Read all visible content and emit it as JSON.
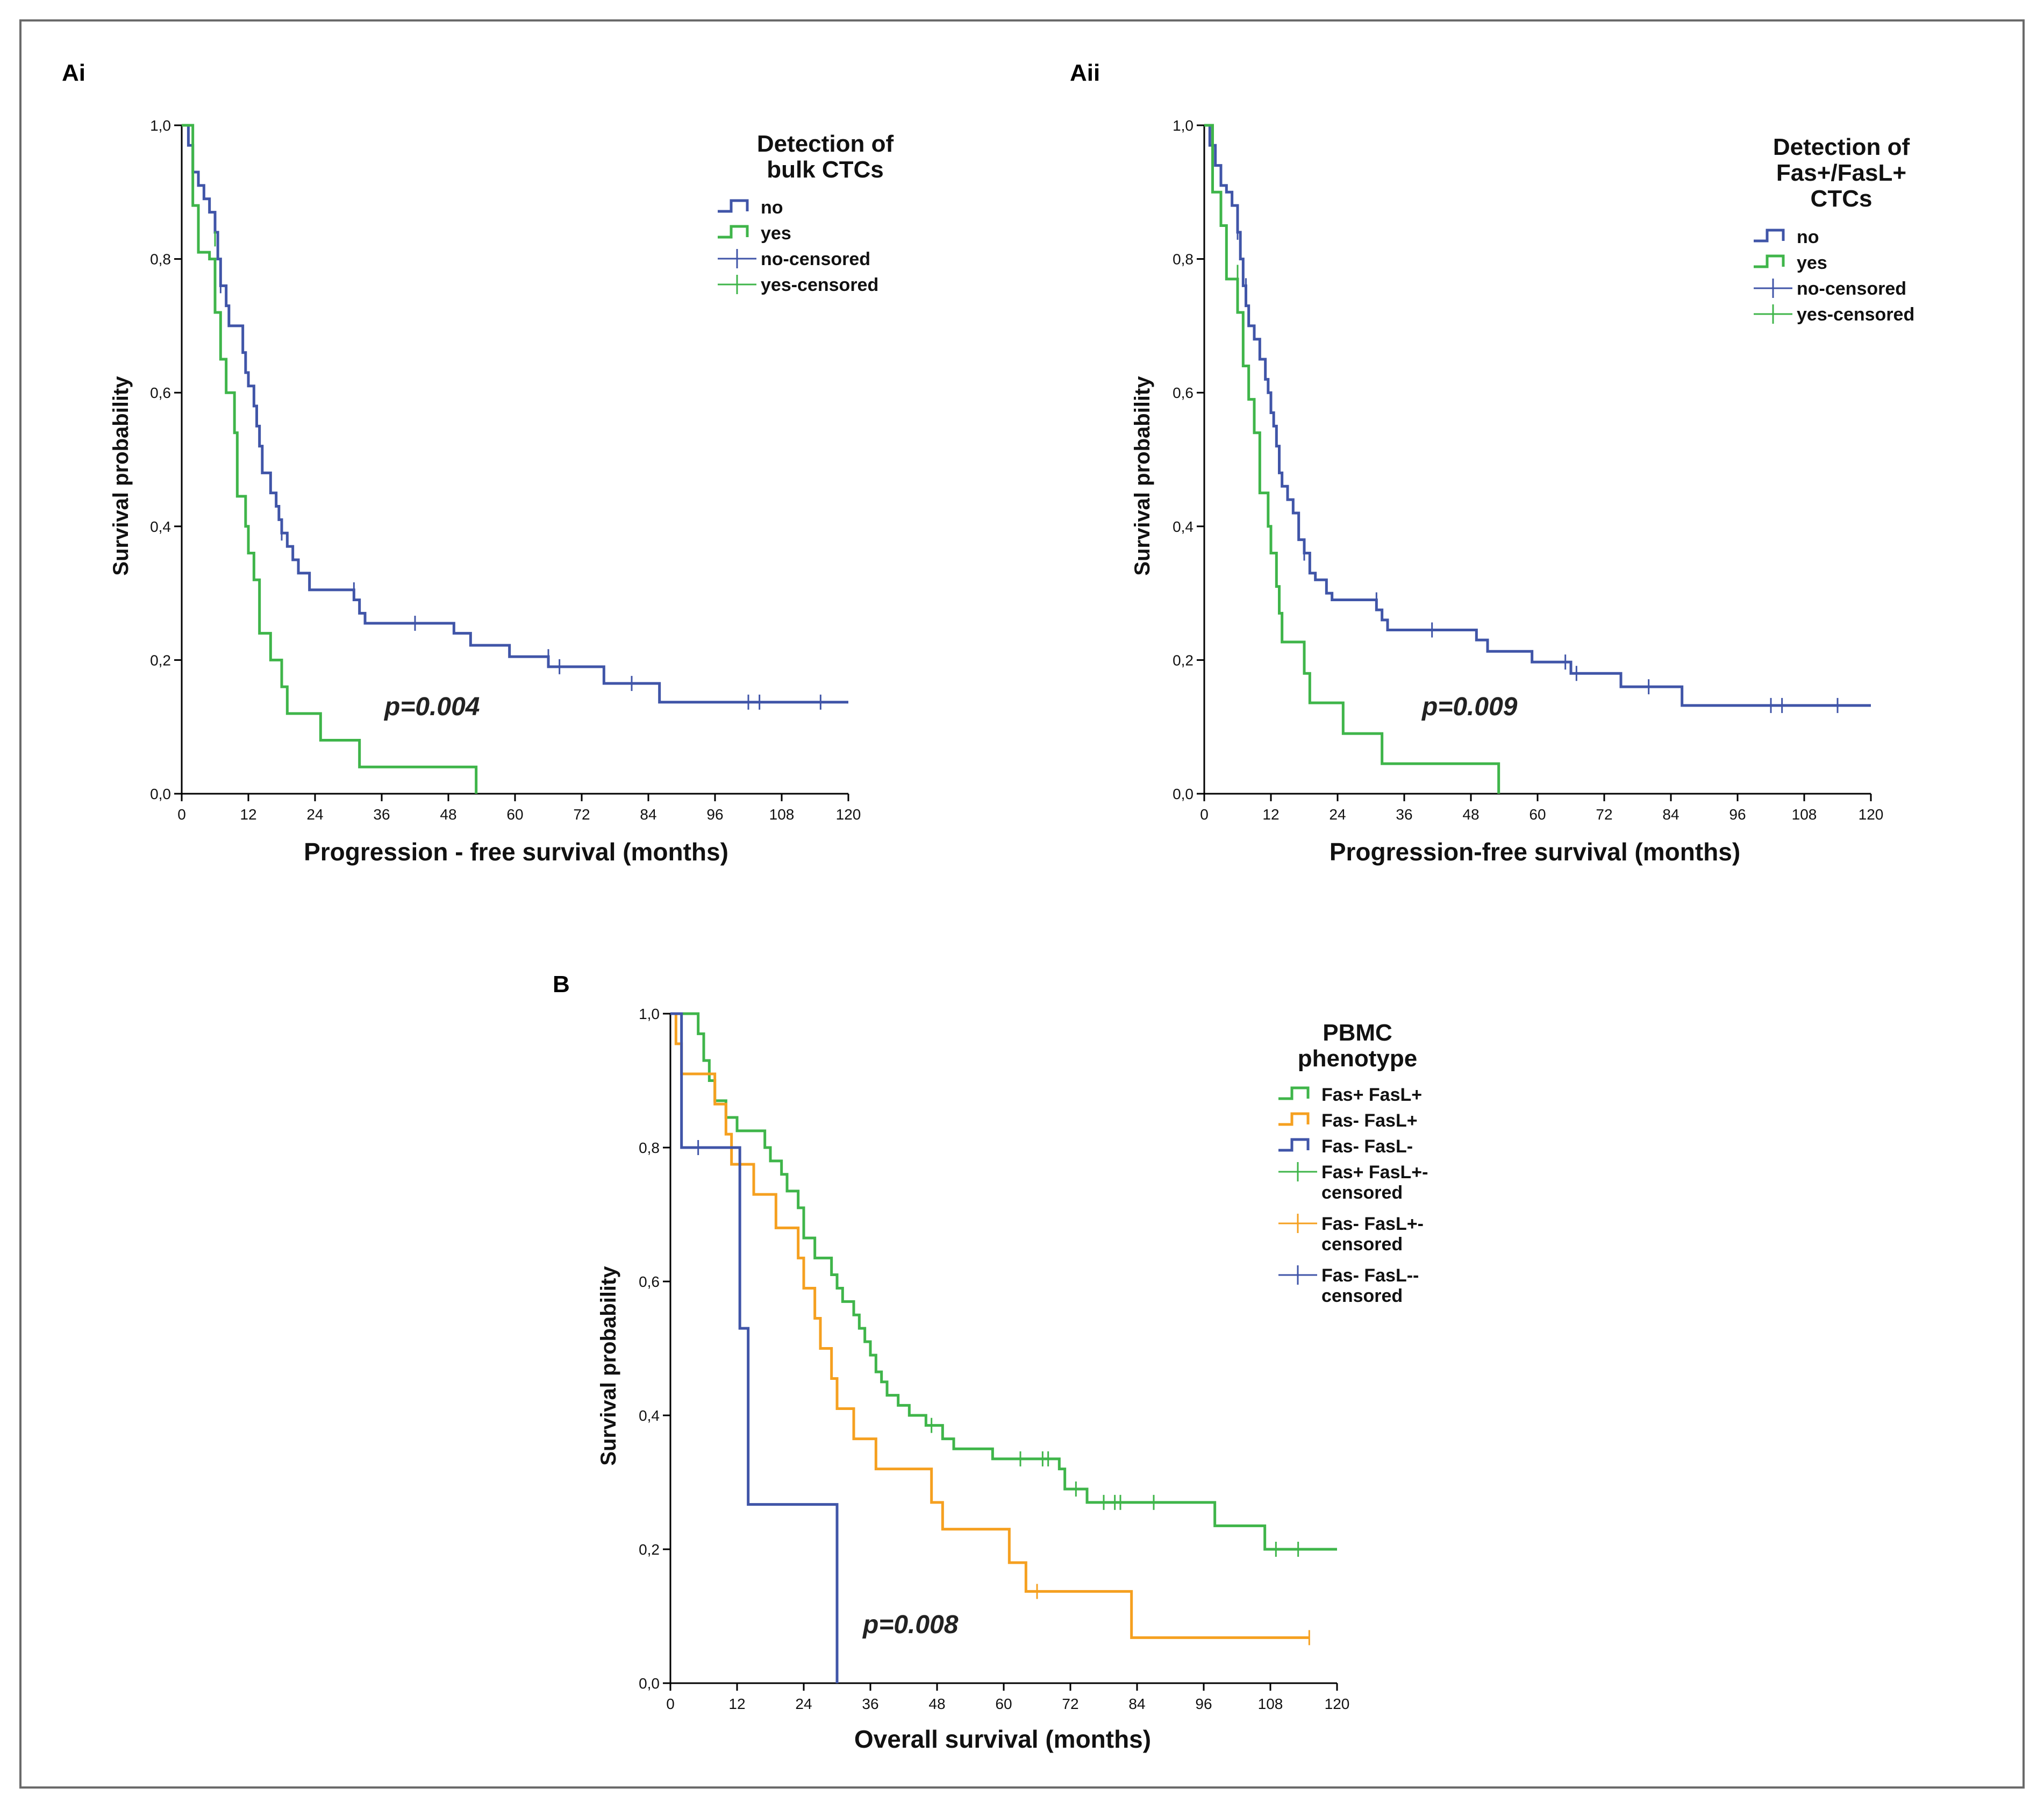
{
  "colors": {
    "blue": "#4055a8",
    "green": "#3fb54a",
    "orange": "#f5a020"
  },
  "chart_data": [
    {
      "id": "Ai",
      "type": "line",
      "panel_label": "Ai",
      "title": "",
      "xlabel": "Progression - free survival (months)",
      "ylabel": "Survival probability",
      "xlim": [
        0,
        120
      ],
      "ylim": [
        0,
        1
      ],
      "x_ticks": [
        0,
        12,
        24,
        36,
        48,
        60,
        72,
        84,
        96,
        108,
        120
      ],
      "y_ticks": [
        "0,0",
        "0,2",
        "0,4",
        "0,6",
        "0,8",
        "1,0"
      ],
      "legend_title": [
        "Detection of",
        "bulk CTCs"
      ],
      "legend": [
        {
          "label": "no",
          "kind": "step",
          "color": "#4055a8"
        },
        {
          "label": "yes",
          "kind": "step",
          "color": "#3fb54a"
        },
        {
          "label": "no-censored",
          "kind": "censor",
          "color": "#4055a8"
        },
        {
          "label": "yes-censored",
          "kind": "censor",
          "color": "#3fb54a"
        }
      ],
      "p_value": "p=0.004",
      "series": [
        {
          "name": "no",
          "color": "#4055a8",
          "steps": [
            [
              0,
              1.0
            ],
            [
              1.2,
              0.97
            ],
            [
              2,
              0.93
            ],
            [
              3,
              0.91
            ],
            [
              4,
              0.89
            ],
            [
              5,
              0.87
            ],
            [
              6,
              0.84
            ],
            [
              6.5,
              0.8
            ],
            [
              7,
              0.76
            ],
            [
              8,
              0.73
            ],
            [
              8.5,
              0.7
            ],
            [
              11,
              0.66
            ],
            [
              11.5,
              0.63
            ],
            [
              12,
              0.61
            ],
            [
              13,
              0.58
            ],
            [
              13.5,
              0.55
            ],
            [
              14,
              0.52
            ],
            [
              14.5,
              0.48
            ],
            [
              16,
              0.45
            ],
            [
              17,
              0.43
            ],
            [
              17.5,
              0.41
            ],
            [
              18,
              0.39
            ],
            [
              19,
              0.37
            ],
            [
              20,
              0.35
            ],
            [
              21,
              0.33
            ],
            [
              23,
              0.305
            ],
            [
              31,
              0.29
            ],
            [
              32,
              0.27
            ],
            [
              33,
              0.255
            ],
            [
              49,
              0.24
            ],
            [
              52,
              0.222
            ],
            [
              59,
              0.205
            ],
            [
              66,
              0.19
            ],
            [
              76,
              0.165
            ],
            [
              86,
              0.137
            ],
            [
              120,
              0.137
            ]
          ],
          "censored": [
            [
              7,
              0.76
            ],
            [
              18,
              0.39
            ],
            [
              31,
              0.305
            ],
            [
              42,
              0.255
            ],
            [
              66,
              0.205
            ],
            [
              68,
              0.19
            ],
            [
              81,
              0.165
            ],
            [
              102,
              0.137
            ],
            [
              104,
              0.137
            ],
            [
              115,
              0.137
            ]
          ]
        },
        {
          "name": "yes",
          "color": "#3fb54a",
          "steps": [
            [
              0,
              1.0
            ],
            [
              2,
              0.88
            ],
            [
              3,
              0.81
            ],
            [
              5,
              0.8
            ],
            [
              6,
              0.72
            ],
            [
              7,
              0.65
            ],
            [
              8,
              0.6
            ],
            [
              9.5,
              0.54
            ],
            [
              10,
              0.445
            ],
            [
              11.5,
              0.4
            ],
            [
              12,
              0.36
            ],
            [
              13,
              0.32
            ],
            [
              14,
              0.24
            ],
            [
              16,
              0.2
            ],
            [
              18,
              0.16
            ],
            [
              19,
              0.12
            ],
            [
              25,
              0.08
            ],
            [
              32,
              0.04
            ],
            [
              53,
              0.0
            ]
          ],
          "censored": [
            [
              6,
              0.83
            ]
          ]
        }
      ]
    },
    {
      "id": "Aii",
      "type": "line",
      "panel_label": "Aii",
      "title": "",
      "xlabel": "Progression-free survival (months)",
      "ylabel": "Survival probability",
      "xlim": [
        0,
        120
      ],
      "ylim": [
        0,
        1
      ],
      "x_ticks": [
        0,
        12,
        24,
        36,
        48,
        60,
        72,
        84,
        96,
        108,
        120
      ],
      "y_ticks": [
        "0,0",
        "0,2",
        "0,4",
        "0,6",
        "0,8",
        "1,0"
      ],
      "legend_title": [
        "Detection of",
        "Fas+/FasL+",
        "CTCs"
      ],
      "legend": [
        {
          "label": "no",
          "kind": "step",
          "color": "#4055a8"
        },
        {
          "label": "yes",
          "kind": "step",
          "color": "#3fb54a"
        },
        {
          "label": "no-censored",
          "kind": "censor",
          "color": "#4055a8"
        },
        {
          "label": "yes-censored",
          "kind": "censor",
          "color": "#3fb54a"
        }
      ],
      "p_value": "p=0.009",
      "series": [
        {
          "name": "no",
          "color": "#4055a8",
          "steps": [
            [
              0,
              1.0
            ],
            [
              1,
              0.97
            ],
            [
              2,
              0.94
            ],
            [
              3,
              0.91
            ],
            [
              4,
              0.9
            ],
            [
              5,
              0.88
            ],
            [
              6,
              0.84
            ],
            [
              6.5,
              0.8
            ],
            [
              7,
              0.76
            ],
            [
              7.5,
              0.73
            ],
            [
              8,
              0.7
            ],
            [
              9,
              0.68
            ],
            [
              10,
              0.65
            ],
            [
              11,
              0.62
            ],
            [
              11.5,
              0.6
            ],
            [
              12,
              0.57
            ],
            [
              12.5,
              0.55
            ],
            [
              13,
              0.52
            ],
            [
              13.5,
              0.48
            ],
            [
              14,
              0.46
            ],
            [
              15,
              0.44
            ],
            [
              16,
              0.42
            ],
            [
              17,
              0.38
            ],
            [
              18,
              0.36
            ],
            [
              19,
              0.33
            ],
            [
              20,
              0.32
            ],
            [
              22,
              0.3
            ],
            [
              23,
              0.29
            ],
            [
              31,
              0.275
            ],
            [
              32,
              0.26
            ],
            [
              33,
              0.245
            ],
            [
              49,
              0.23
            ],
            [
              51,
              0.213
            ],
            [
              59,
              0.197
            ],
            [
              66,
              0.18
            ],
            [
              75,
              0.16
            ],
            [
              86,
              0.132
            ],
            [
              120,
              0.132
            ]
          ],
          "censored": [
            [
              6,
              0.84
            ],
            [
              7.5,
              0.76
            ],
            [
              18,
              0.36
            ],
            [
              31,
              0.29
            ],
            [
              41,
              0.245
            ],
            [
              65,
              0.197
            ],
            [
              67,
              0.18
            ],
            [
              80,
              0.16
            ],
            [
              102,
              0.132
            ],
            [
              104,
              0.132
            ],
            [
              114,
              0.132
            ]
          ]
        },
        {
          "name": "yes",
          "color": "#3fb54a",
          "steps": [
            [
              0,
              1.0
            ],
            [
              1.5,
              0.9
            ],
            [
              3,
              0.85
            ],
            [
              4,
              0.77
            ],
            [
              6,
              0.72
            ],
            [
              7,
              0.64
            ],
            [
              8,
              0.59
            ],
            [
              9,
              0.54
            ],
            [
              10,
              0.45
            ],
            [
              11.5,
              0.4
            ],
            [
              12,
              0.36
            ],
            [
              13,
              0.31
            ],
            [
              13.5,
              0.27
            ],
            [
              14,
              0.227
            ],
            [
              18,
              0.18
            ],
            [
              19,
              0.136
            ],
            [
              25,
              0.09
            ],
            [
              32,
              0.045
            ],
            [
              53,
              0.0
            ]
          ],
          "censored": [
            [
              6,
              0.78
            ]
          ]
        }
      ]
    },
    {
      "id": "B",
      "type": "line",
      "panel_label": "B",
      "title": "",
      "xlabel": "Overall survival (months)",
      "ylabel": "Survival probability",
      "xlim": [
        0,
        120
      ],
      "ylim": [
        0,
        1
      ],
      "x_ticks": [
        0,
        12,
        24,
        36,
        48,
        60,
        72,
        84,
        96,
        108,
        120
      ],
      "y_ticks": [
        "0,0",
        "0,2",
        "0,4",
        "0,6",
        "0,8",
        "1,0"
      ],
      "legend_title": [
        "PBMC",
        "phenotype"
      ],
      "legend": [
        {
          "label": "Fas+ FasL+",
          "kind": "step",
          "color": "#3fb54a"
        },
        {
          "label": "Fas- FasL+",
          "kind": "step",
          "color": "#f5a020"
        },
        {
          "label": "Fas- FasL-",
          "kind": "step",
          "color": "#4055a8"
        },
        {
          "label": [
            "Fas+ FasL+-",
            "censored"
          ],
          "kind": "censor",
          "color": "#3fb54a"
        },
        {
          "label": [
            "Fas- FasL+-",
            "censored"
          ],
          "kind": "censor",
          "color": "#f5a020"
        },
        {
          "label": [
            "Fas- FasL--",
            "censored"
          ],
          "kind": "censor",
          "color": "#4055a8"
        }
      ],
      "p_value": "p=0.008",
      "series": [
        {
          "name": "Fas+ FasL+",
          "color": "#3fb54a",
          "steps": [
            [
              0,
              1.0
            ],
            [
              5,
              0.97
            ],
            [
              6,
              0.93
            ],
            [
              7,
              0.9
            ],
            [
              8,
              0.87
            ],
            [
              10,
              0.845
            ],
            [
              12,
              0.825
            ],
            [
              17,
              0.8
            ],
            [
              18,
              0.78
            ],
            [
              20,
              0.76
            ],
            [
              21,
              0.735
            ],
            [
              23,
              0.71
            ],
            [
              24,
              0.665
            ],
            [
              26,
              0.635
            ],
            [
              29,
              0.61
            ],
            [
              30,
              0.59
            ],
            [
              31,
              0.57
            ],
            [
              33,
              0.55
            ],
            [
              34,
              0.53
            ],
            [
              35,
              0.51
            ],
            [
              36,
              0.49
            ],
            [
              37,
              0.465
            ],
            [
              38,
              0.45
            ],
            [
              39,
              0.43
            ],
            [
              41,
              0.415
            ],
            [
              43,
              0.4
            ],
            [
              46,
              0.385
            ],
            [
              49,
              0.365
            ],
            [
              51,
              0.35
            ],
            [
              58,
              0.335
            ],
            [
              70,
              0.32
            ],
            [
              71,
              0.29
            ],
            [
              75,
              0.27
            ],
            [
              98,
              0.235
            ],
            [
              107,
              0.2
            ],
            [
              120,
              0.2
            ]
          ],
          "censored": [
            [
              47,
              0.385
            ],
            [
              63,
              0.335
            ],
            [
              67,
              0.335
            ],
            [
              68,
              0.335
            ],
            [
              73,
              0.29
            ],
            [
              78,
              0.27
            ],
            [
              80,
              0.27
            ],
            [
              81,
              0.27
            ],
            [
              87,
              0.27
            ],
            [
              109,
              0.2
            ],
            [
              113,
              0.2
            ]
          ]
        },
        {
          "name": "Fas- FasL+",
          "color": "#f5a020",
          "steps": [
            [
              0,
              1.0
            ],
            [
              1,
              0.955
            ],
            [
              2,
              0.91
            ],
            [
              8,
              0.865
            ],
            [
              10,
              0.82
            ],
            [
              11,
              0.775
            ],
            [
              15,
              0.73
            ],
            [
              19,
              0.68
            ],
            [
              23,
              0.635
            ],
            [
              24,
              0.59
            ],
            [
              26,
              0.545
            ],
            [
              27,
              0.5
            ],
            [
              29,
              0.455
            ],
            [
              30,
              0.41
            ],
            [
              33,
              0.365
            ],
            [
              37,
              0.32
            ],
            [
              47,
              0.27
            ],
            [
              49,
              0.23
            ],
            [
              61,
              0.18
            ],
            [
              64,
              0.137
            ],
            [
              83,
              0.068
            ],
            [
              115,
              0.068
            ]
          ],
          "censored": [
            [
              66,
              0.137
            ],
            [
              115,
              0.068
            ]
          ]
        },
        {
          "name": "Fas- FasL-",
          "color": "#4055a8",
          "steps": [
            [
              0,
              1.0
            ],
            [
              2,
              0.8
            ],
            [
              12.5,
              0.53
            ],
            [
              14,
              0.267
            ],
            [
              30,
              0.0
            ]
          ],
          "censored": [
            [
              5,
              0.8
            ]
          ]
        }
      ]
    }
  ]
}
